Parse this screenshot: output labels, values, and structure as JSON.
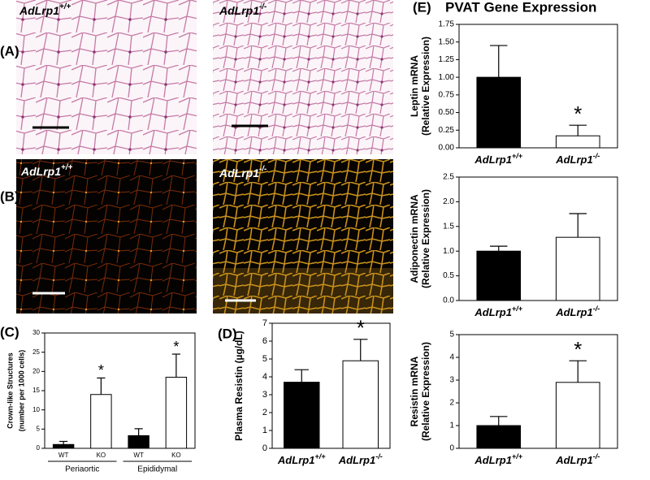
{
  "panels": {
    "A": {
      "label": "(A)",
      "left": "AdLrp1+/+",
      "right": "AdLrp1-/-"
    },
    "B": {
      "label": "(B)",
      "left": "AdLrp1+/+",
      "right": "AdLrp1-/-"
    },
    "C": {
      "label": "(C)"
    },
    "D": {
      "label": "(D)"
    },
    "E": {
      "label": "(E)",
      "title": "PVAT Gene Expression"
    }
  },
  "chart_data": [
    {
      "type": "bar",
      "ylabel": [
        "Crown-like Structures",
        "(number per 1000 cells)"
      ],
      "categories": [
        "WT",
        "KO",
        "WT",
        "KO"
      ],
      "group_labels": [
        "Periaortic",
        "Epididymal"
      ],
      "values": [
        1,
        14,
        3.3,
        18.5
      ],
      "errors": [
        0.8,
        4.3,
        1.8,
        6
      ],
      "colors": [
        "#000000",
        "#ffffff",
        "#000000",
        "#ffffff"
      ],
      "ylim": [
        0,
        30
      ],
      "yticks": [
        0,
        5,
        10,
        15,
        20,
        25,
        30
      ],
      "annotations": [
        "*",
        "*"
      ]
    },
    {
      "type": "bar",
      "ylabel": [
        "Plasma Resistin (µg/dL)"
      ],
      "categories": [
        "AdLrp1+/+",
        "AdLrp1-/-"
      ],
      "values": [
        3.7,
        4.9
      ],
      "errors": [
        0.7,
        1.2
      ],
      "colors": [
        "#000000",
        "#ffffff"
      ],
      "ylim": [
        0,
        7
      ],
      "yticks": [
        0,
        1,
        2,
        3,
        4,
        5,
        6,
        7
      ],
      "annotations": [
        "*"
      ]
    },
    {
      "type": "bar",
      "ylabel": [
        "Leptin mRNA",
        "(Relative Expression)"
      ],
      "categories": [
        "AdLrp1+/+",
        "AdLrp1-/-"
      ],
      "values": [
        1.0,
        0.17
      ],
      "errors": [
        0.45,
        0.15
      ],
      "colors": [
        "#000000",
        "#ffffff"
      ],
      "ylim": [
        0,
        1.75
      ],
      "yticks": [
        {
          "value": 0,
          "label": "0.00"
        },
        0.25,
        {
          "value": 0.5,
          "label": "0.50"
        },
        0.75,
        {
          "value": 1,
          "label": "1.00"
        },
        1.25,
        {
          "value": 1.5,
          "label": "1.50"
        },
        1.75
      ],
      "annotations": [
        "*"
      ]
    },
    {
      "type": "bar",
      "ylabel": [
        "Adiponectin mRNA",
        "(Relative Expression)"
      ],
      "categories": [
        "AdLrp1+/+",
        "AdLrp1-/-"
      ],
      "values": [
        1.0,
        1.28
      ],
      "errors": [
        0.1,
        0.48
      ],
      "colors": [
        "#000000",
        "#ffffff"
      ],
      "ylim": [
        0,
        2.5
      ],
      "yticks": [
        {
          "value": 0,
          "label": "0.0"
        },
        0.5,
        {
          "value": 1,
          "label": "1.0"
        },
        1.5,
        {
          "value": 2,
          "label": "2.0"
        },
        2.5
      ]
    },
    {
      "type": "bar",
      "ylabel": [
        "Resistin mRNA",
        "(Relative Expression)"
      ],
      "categories": [
        "AdLrp1+/+",
        "AdLrp1-/-"
      ],
      "values": [
        1.0,
        2.9
      ],
      "errors": [
        0.4,
        0.95
      ],
      "colors": [
        "#000000",
        "#ffffff"
      ],
      "ylim": [
        0,
        5
      ],
      "yticks": [
        0,
        1,
        2,
        3,
        4,
        5
      ],
      "annotations": [
        "*"
      ]
    }
  ]
}
